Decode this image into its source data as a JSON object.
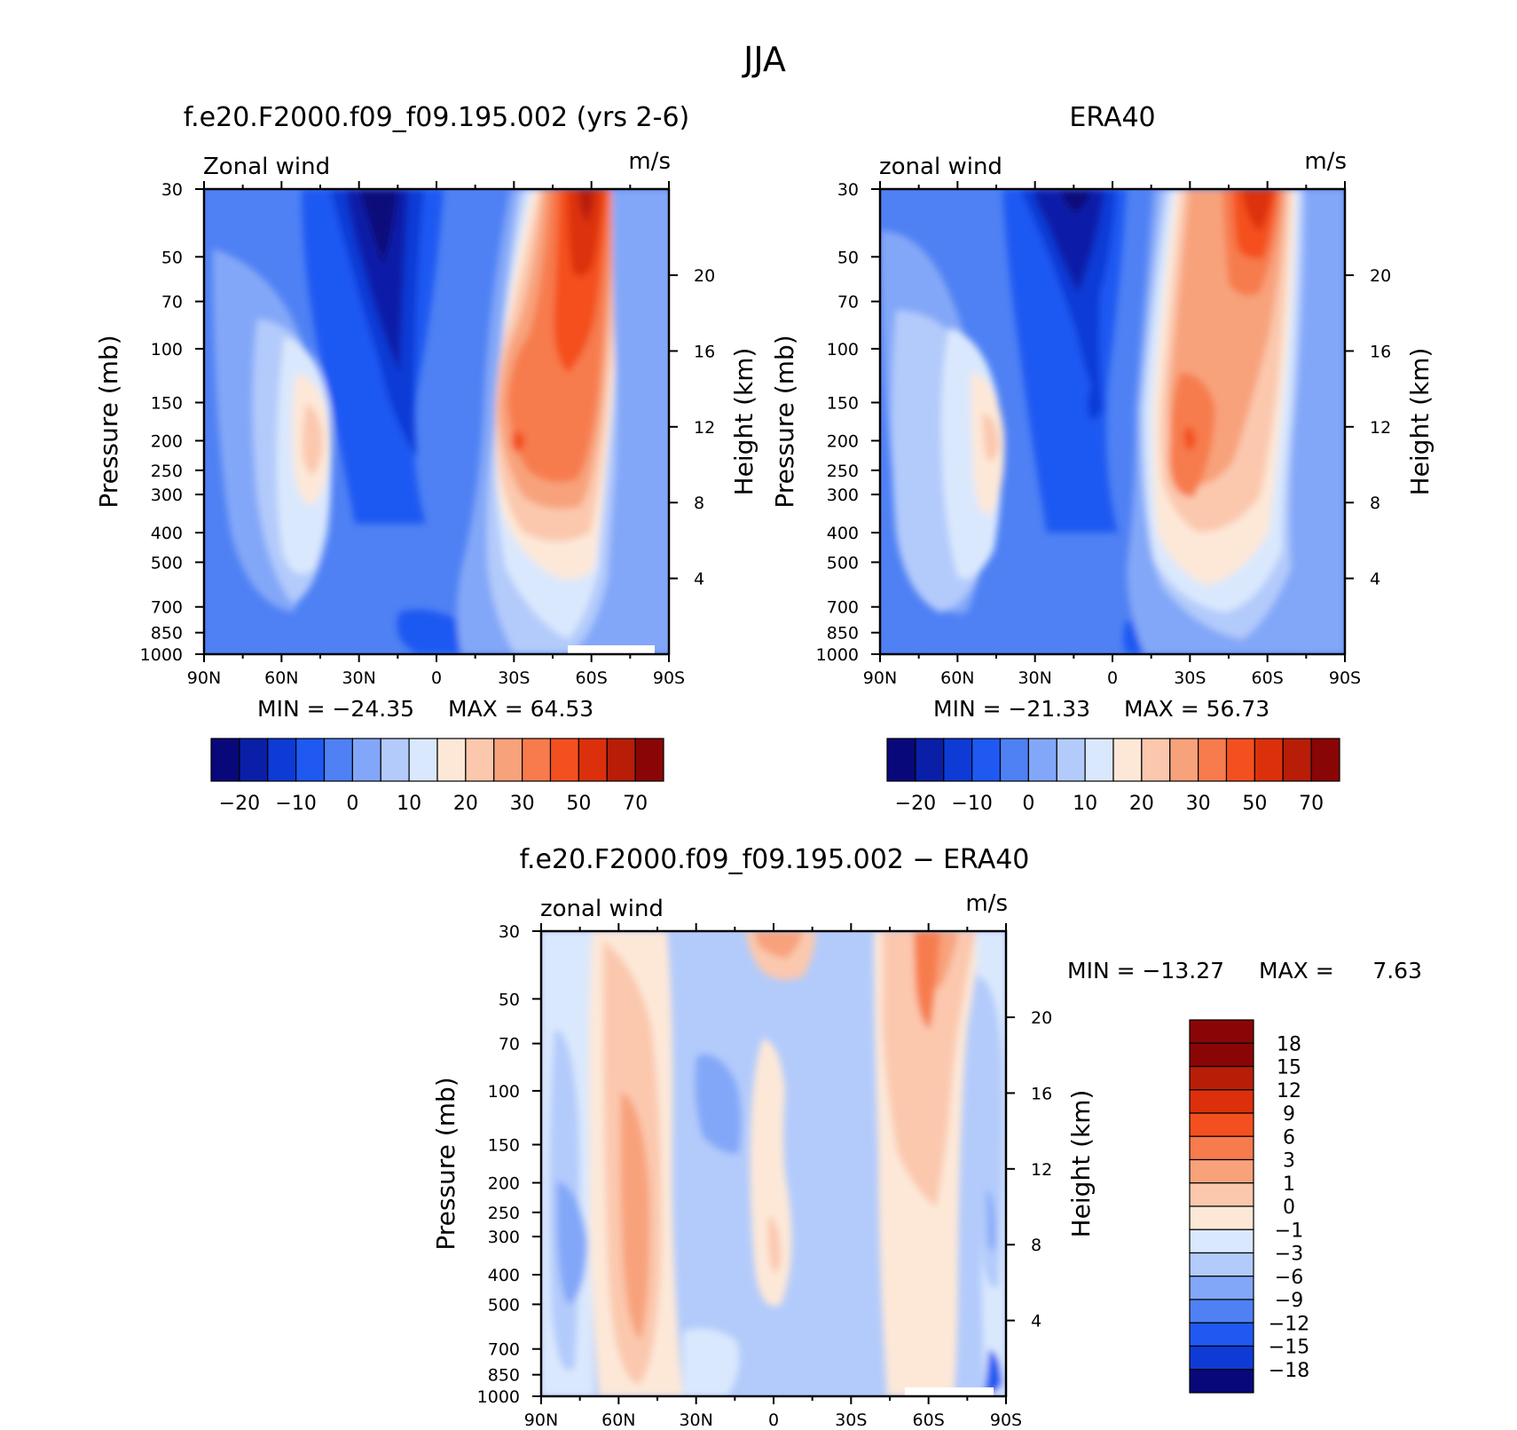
{
  "figure": {
    "title": "JJA"
  },
  "colors": {
    "full_field": [
      "#08087a",
      "#0a1fa8",
      "#0e3bd6",
      "#1f59f2",
      "#4f81f4",
      "#83a7f8",
      "#b3cbfb",
      "#dae8fd",
      "#fde8d8",
      "#fbc8ae",
      "#f8a27b",
      "#f77b4d",
      "#f4501f",
      "#dc300c",
      "#b81d08",
      "#8a0606"
    ],
    "difference": [
      "#08087a",
      "#0e3bd6",
      "#1f59f2",
      "#4f81f4",
      "#83a7f8",
      "#b3cbfb",
      "#dae8fd",
      "#fde8d8",
      "#fbc8ae",
      "#f8a27b",
      "#f77b4d",
      "#f4501f",
      "#dc300c",
      "#b81d08",
      "#8a0606"
    ]
  },
  "chart_data": [
    {
      "type": "heatmap",
      "title": "f.e20.F2000.f09_f09.195.002 (yrs 2-6)",
      "left_string": "Zonal wind",
      "right_string": "m/s",
      "xlabel": "",
      "ylabel": "Pressure (mb)",
      "ylabel_right": "Height (km)",
      "x_ticks": [
        "90N",
        "60N",
        "30N",
        "0",
        "30S",
        "60S",
        "90S"
      ],
      "y_ticks": [
        "30",
        "50",
        "70",
        "100",
        "150",
        "200",
        "250",
        "300",
        "400",
        "500",
        "700",
        "850",
        "1000"
      ],
      "y2_ticks": [
        "4",
        "8",
        "12",
        "16",
        "20"
      ],
      "x_range_deg_lat": [
        90,
        -90
      ],
      "y_range_mb": [
        1000,
        30
      ],
      "min_label": "MIN = −24.35",
      "max_label": "MAX =  64.53",
      "min": -24.35,
      "max": 64.53,
      "colorbar": {
        "orientation": "horizontal",
        "labels": [
          "−20",
          "−10",
          "0",
          "10",
          "20",
          "30",
          "50",
          "70"
        ]
      },
      "jets_max_mps": [
        {
          "lat": -30,
          "p_mb": 200,
          "value": 45
        },
        {
          "lat": -60,
          "p_mb": 30,
          "value": 60
        },
        {
          "lat": 45,
          "p_mb": 200,
          "value": 20
        }
      ],
      "easterly_min_mps": [
        {
          "lat": 20,
          "p_mb": 30,
          "value": -24
        }
      ]
    },
    {
      "type": "heatmap",
      "title": "ERA40",
      "left_string": "zonal wind",
      "right_string": "m/s",
      "xlabel": "",
      "ylabel": "Pressure (mb)",
      "ylabel_right": "Height (km)",
      "x_ticks": [
        "90N",
        "60N",
        "30N",
        "0",
        "30S",
        "60S",
        "90S"
      ],
      "y_ticks": [
        "30",
        "50",
        "70",
        "100",
        "150",
        "200",
        "250",
        "300",
        "400",
        "500",
        "700",
        "850",
        "1000"
      ],
      "y2_ticks": [
        "4",
        "8",
        "12",
        "16",
        "20"
      ],
      "x_range_deg_lat": [
        90,
        -90
      ],
      "y_range_mb": [
        1000,
        30
      ],
      "min_label": "MIN = −21.33",
      "max_label": "MAX =  56.73",
      "min": -21.33,
      "max": 56.73,
      "colorbar": {
        "orientation": "horizontal",
        "labels": [
          "−20",
          "−10",
          "0",
          "10",
          "20",
          "30",
          "50",
          "70"
        ]
      },
      "jets_max_mps": [
        {
          "lat": -30,
          "p_mb": 200,
          "value": 45
        },
        {
          "lat": -60,
          "p_mb": 30,
          "value": 50
        },
        {
          "lat": 45,
          "p_mb": 200,
          "value": 20
        }
      ],
      "easterly_min_mps": [
        {
          "lat": 15,
          "p_mb": 30,
          "value": -21
        }
      ]
    },
    {
      "type": "heatmap",
      "title": "f.e20.F2000.f09_f09.195.002 − ERA40",
      "left_string": "zonal wind",
      "right_string": "m/s",
      "xlabel": "",
      "ylabel": "Pressure (mb)",
      "ylabel_right": "Height (km)",
      "x_ticks": [
        "90N",
        "60N",
        "30N",
        "0",
        "30S",
        "60S",
        "90S"
      ],
      "y_ticks": [
        "30",
        "50",
        "70",
        "100",
        "150",
        "200",
        "250",
        "300",
        "400",
        "500",
        "700",
        "850",
        "1000"
      ],
      "y2_ticks": [
        "4",
        "8",
        "12",
        "16",
        "20"
      ],
      "x_range_deg_lat": [
        90,
        -90
      ],
      "y_range_mb": [
        1000,
        30
      ],
      "min_label": "MIN = −13.27",
      "max_label": "MAX =",
      "max_value_label": "7.63",
      "min": -13.27,
      "max": 7.63,
      "colorbar": {
        "orientation": "vertical",
        "labels": [
          "18",
          "15",
          "12",
          "9",
          "6",
          "3",
          "1",
          "0",
          "−1",
          "−3",
          "−6",
          "−9",
          "−12",
          "−15",
          "−18"
        ]
      }
    }
  ]
}
